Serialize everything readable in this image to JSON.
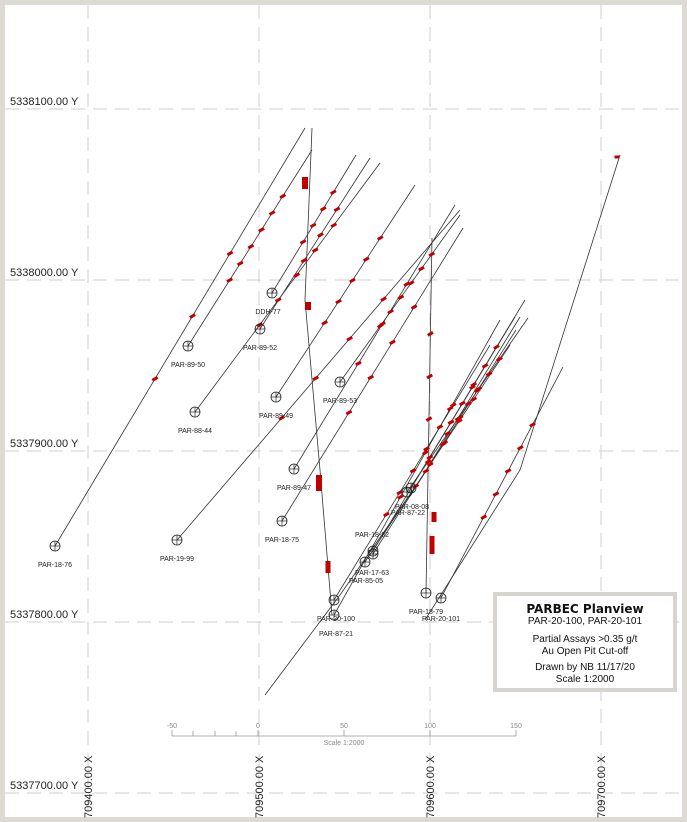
{
  "map": {
    "y_grid_labels": [
      "5338100.00 Y",
      "5338000.00 Y",
      "5337900.00 Y",
      "5337800.00 Y",
      "5337700.00 Y"
    ],
    "x_grid_labels": [
      "709400.00 X",
      "709500.00 X",
      "709600.00 X",
      "709700.00 X"
    ],
    "assay_color": "#c00000",
    "drillholes": [
      {
        "name": "PAR-18-76"
      },
      {
        "name": "PAR-19-99"
      },
      {
        "name": "PAR-88-44"
      },
      {
        "name": "PAR-89-50"
      },
      {
        "name": "PAR-89-52"
      },
      {
        "name": "DDH-77"
      },
      {
        "name": "PAR-89-49"
      },
      {
        "name": "PAR-89-53"
      },
      {
        "name": "PAR-89-47"
      },
      {
        "name": "PAR-18-75"
      },
      {
        "name": "PAR-08-08"
      },
      {
        "name": "PAR-87-22"
      },
      {
        "name": "PAR-18-82"
      },
      {
        "name": "PAR-17-63"
      },
      {
        "name": "PAR-85-05"
      },
      {
        "name": "PAR-20-100"
      },
      {
        "name": "PAR-87-21"
      },
      {
        "name": "PAR-18-79"
      },
      {
        "name": "PAR-20-101"
      }
    ]
  },
  "scale_bar": {
    "ticks": [
      "-50",
      "0",
      "50",
      "100",
      "150"
    ],
    "caption": "Scale 1:2000"
  },
  "legend": {
    "title": "PARBEC Planview",
    "holes": "PAR-20-100, PAR-20-101",
    "line1": "Partial Assays >0.35 g/t",
    "line2": "Au Open Pit Cut-off",
    "line3": "Drawn by NB 11/17/20",
    "line4": "Scale 1:2000"
  }
}
